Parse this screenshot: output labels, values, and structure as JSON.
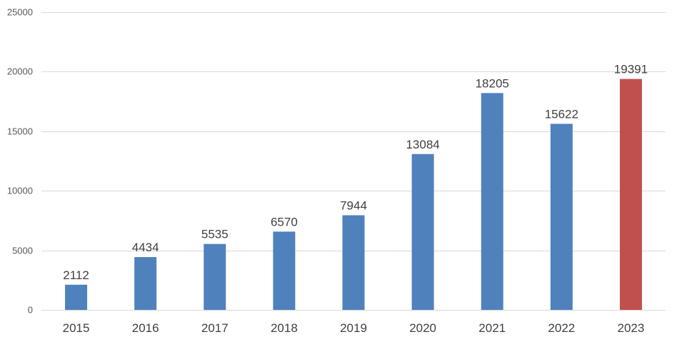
{
  "chart_data": {
    "type": "bar",
    "title": "",
    "xlabel": "",
    "ylabel": "",
    "categories": [
      "2015",
      "2016",
      "2017",
      "2018",
      "2019",
      "2020",
      "2021",
      "2022",
      "2023"
    ],
    "values": [
      2112,
      4434,
      5535,
      6570,
      7944,
      13084,
      18205,
      15622,
      19391
    ],
    "ylim": [
      0,
      25000
    ],
    "yticks": [
      0,
      5000,
      10000,
      15000,
      20000,
      25000
    ],
    "grid": true,
    "legend": "none",
    "colors": {
      "default": "#4f81bd",
      "highlight": "#c0504d"
    },
    "highlight_category": "2023"
  }
}
